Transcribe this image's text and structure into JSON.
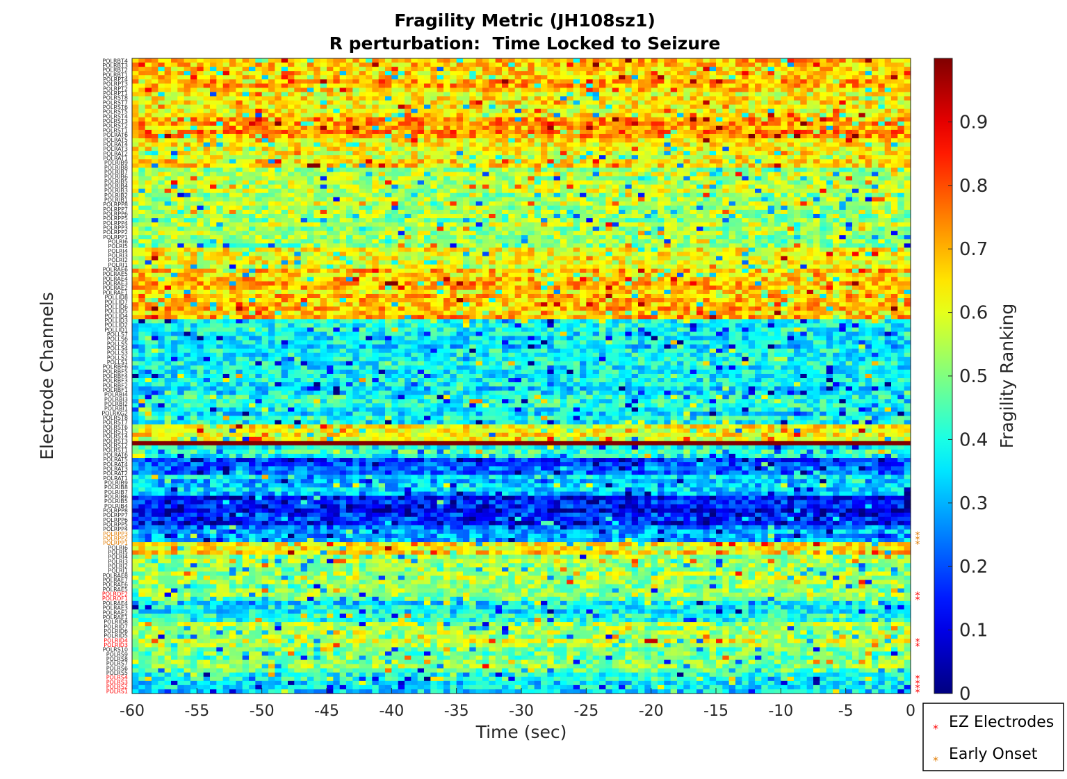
{
  "chart_data": {
    "type": "heatmap",
    "title": "Fragility Metric (JH108sz1)",
    "subtitle": "R perturbation:  Time Locked to Seizure",
    "xlabel": "Time (sec)",
    "ylabel": "Electrode Channels",
    "xlim": [
      -60,
      0
    ],
    "x_ticks": [
      "-60",
      "-55",
      "-50",
      "-45",
      "-40",
      "-35",
      "-30",
      "-25",
      "-20",
      "-15",
      "-10",
      "-5",
      "0"
    ],
    "colorbar": {
      "label": "Fragility Ranking",
      "range": [
        0,
        1
      ],
      "ticks": [
        "0",
        "0.1",
        "0.2",
        "0.3",
        "0.4",
        "0.5",
        "0.6",
        "0.7",
        "0.8",
        "0.9"
      ],
      "colormap": "jet"
    },
    "n_time_bins": 120,
    "channel_bands": [
      {
        "rows": 8,
        "mean": 0.68
      },
      {
        "rows": 6,
        "mean": 0.63
      },
      {
        "rows": 5,
        "mean": 0.72
      },
      {
        "rows": 7,
        "mean": 0.62
      },
      {
        "rows": 9,
        "mean": 0.55
      },
      {
        "rows": 10,
        "mean": 0.53
      },
      {
        "rows": 5,
        "mean": 0.59
      },
      {
        "rows": 6,
        "mean": 0.68
      },
      {
        "rows": 6,
        "mean": 0.7
      },
      {
        "rows": 6,
        "mean": 0.39
      },
      {
        "rows": 12,
        "mean": 0.35
      },
      {
        "rows": 7,
        "mean": 0.38
      },
      {
        "rows": 4,
        "mean": 0.62
      },
      {
        "rows": 1,
        "mean": 1.0
      },
      {
        "rows": 3,
        "mean": 0.42
      },
      {
        "rows": 4,
        "mean": 0.2
      },
      {
        "rows": 5,
        "mean": 0.34
      },
      {
        "rows": 7,
        "mean": 0.14
      },
      {
        "rows": 4,
        "mean": 0.28
      },
      {
        "rows": 3,
        "mean": 0.64
      },
      {
        "rows": 11,
        "mean": 0.52
      },
      {
        "rows": 5,
        "mean": 0.37
      },
      {
        "rows": 6,
        "mean": 0.55
      },
      {
        "rows": 6,
        "mean": 0.5
      },
      {
        "rows": 5,
        "mean": 0.36
      }
    ],
    "channels": [
      {
        "label": "POLRBT4",
        "color": "#262626"
      },
      {
        "label": "POLRBT3",
        "color": "#262626"
      },
      {
        "label": "POLRBT2",
        "color": "#262626"
      },
      {
        "label": "POLRBT1",
        "color": "#262626"
      },
      {
        "label": "POLRPT4",
        "color": "#262626"
      },
      {
        "label": "POLRPT3",
        "color": "#262626"
      },
      {
        "label": "POLRPT2",
        "color": "#262626"
      },
      {
        "label": "POLRPT1",
        "color": "#262626"
      },
      {
        "label": "POLRST8",
        "color": "#262626"
      },
      {
        "label": "POLRST7",
        "color": "#262626"
      },
      {
        "label": "POLRST6",
        "color": "#262626"
      },
      {
        "label": "POLRST5",
        "color": "#262626"
      },
      {
        "label": "POLRST4",
        "color": "#262626"
      },
      {
        "label": "POLRST3",
        "color": "#262626"
      },
      {
        "label": "POLRST2",
        "color": "#262626"
      },
      {
        "label": "POLRST1",
        "color": "#262626"
      },
      {
        "label": "POLRAT6",
        "color": "#262626"
      },
      {
        "label": "POLRAT5",
        "color": "#262626"
      },
      {
        "label": "POLRAT4",
        "color": "#262626"
      },
      {
        "label": "POLRAT3",
        "color": "#262626"
      },
      {
        "label": "POLRAT2",
        "color": "#262626"
      },
      {
        "label": "POLRAT1",
        "color": "#262626"
      },
      {
        "label": "POLRIB9",
        "color": "#262626"
      },
      {
        "label": "POLRIB8",
        "color": "#262626"
      },
      {
        "label": "POLRIB7",
        "color": "#262626"
      },
      {
        "label": "POLRIB6",
        "color": "#262626"
      },
      {
        "label": "POLRIB5",
        "color": "#262626"
      },
      {
        "label": "POLRIB4",
        "color": "#262626"
      },
      {
        "label": "POLRIB3",
        "color": "#262626"
      },
      {
        "label": "POLRIB2",
        "color": "#262626"
      },
      {
        "label": "POLRIB1",
        "color": "#262626"
      },
      {
        "label": "POLRPP8",
        "color": "#262626"
      },
      {
        "label": "POLRPP7",
        "color": "#262626"
      },
      {
        "label": "POLRPP6",
        "color": "#262626"
      },
      {
        "label": "POLRPP5",
        "color": "#262626"
      },
      {
        "label": "POLRPP4",
        "color": "#262626"
      },
      {
        "label": "POLRPP3",
        "color": "#262626"
      },
      {
        "label": "POLRPP2",
        "color": "#262626"
      },
      {
        "label": "POLRPP1",
        "color": "#262626"
      },
      {
        "label": "POLRI6",
        "color": "#262626"
      },
      {
        "label": "POLRI5",
        "color": "#262626"
      },
      {
        "label": "POLRI4",
        "color": "#262626"
      },
      {
        "label": "POLRI3",
        "color": "#262626"
      },
      {
        "label": "POLRI2",
        "color": "#262626"
      },
      {
        "label": "POLRI1",
        "color": "#262626"
      },
      {
        "label": "POLRAE6",
        "color": "#262626"
      },
      {
        "label": "POLRAE5",
        "color": "#262626"
      },
      {
        "label": "POLRAE4",
        "color": "#262626"
      },
      {
        "label": "POLRAE3",
        "color": "#262626"
      },
      {
        "label": "POLRAE2",
        "color": "#262626"
      },
      {
        "label": "POLRAE1",
        "color": "#262626"
      },
      {
        "label": "POLLID8",
        "color": "#262626"
      },
      {
        "label": "POLLID7",
        "color": "#262626"
      },
      {
        "label": "POLLID6",
        "color": "#262626"
      },
      {
        "label": "POLLID5",
        "color": "#262626"
      },
      {
        "label": "POLLID4",
        "color": "#262626"
      },
      {
        "label": "POLLID3",
        "color": "#262626"
      },
      {
        "label": "POLLID2",
        "color": "#262626"
      },
      {
        "label": "POLLID1",
        "color": "#262626"
      },
      {
        "label": "POLLS7",
        "color": "#262626"
      },
      {
        "label": "POLLS6",
        "color": "#262626"
      },
      {
        "label": "POLLS5",
        "color": "#262626"
      },
      {
        "label": "POLLS4",
        "color": "#262626"
      },
      {
        "label": "POLLS3",
        "color": "#262626"
      },
      {
        "label": "POLLS2",
        "color": "#262626"
      },
      {
        "label": "POLLS1",
        "color": "#262626"
      },
      {
        "label": "POLRBF6",
        "color": "#262626"
      },
      {
        "label": "POLRBF5",
        "color": "#262626"
      },
      {
        "label": "POLRBF4",
        "color": "#262626"
      },
      {
        "label": "POLRBF3",
        "color": "#262626"
      },
      {
        "label": "POLRBF2",
        "color": "#262626"
      },
      {
        "label": "POLRBF1",
        "color": "#262626"
      },
      {
        "label": "POLRBI4",
        "color": "#262626"
      },
      {
        "label": "POLRBI3",
        "color": "#262626"
      },
      {
        "label": "POLRBI2",
        "color": "#262626"
      },
      {
        "label": "POLRBI1",
        "color": "#262626"
      },
      {
        "label": "POLRKG2",
        "color": "#262626"
      },
      {
        "label": "POLRST8",
        "color": "#262626"
      },
      {
        "label": "POLRST7",
        "color": "#262626"
      },
      {
        "label": "POLRST6",
        "color": "#262626"
      },
      {
        "label": "POLRST5",
        "color": "#262626"
      },
      {
        "label": "POLRST4",
        "color": "#262626"
      },
      {
        "label": "POLRST3",
        "color": "#262626"
      },
      {
        "label": "POLRST2",
        "color": "#262626"
      },
      {
        "label": "POLRST1",
        "color": "#262626"
      },
      {
        "label": "POLRAT6",
        "color": "#262626"
      },
      {
        "label": "POLRAT5",
        "color": "#262626"
      },
      {
        "label": "POLRAT4",
        "color": "#262626"
      },
      {
        "label": "POLRAT3",
        "color": "#262626"
      },
      {
        "label": "POLRAT2",
        "color": "#262626"
      },
      {
        "label": "POLRAT1",
        "color": "#262626"
      },
      {
        "label": "POLRIB9",
        "color": "#262626"
      },
      {
        "label": "POLRIB8",
        "color": "#262626"
      },
      {
        "label": "POLRIB7",
        "color": "#262626"
      },
      {
        "label": "POLRIB6",
        "color": "#262626"
      },
      {
        "label": "POLRIB5",
        "color": "#262626"
      },
      {
        "label": "POLRIB4",
        "color": "#262626"
      },
      {
        "label": "POLRPP8",
        "color": "#262626"
      },
      {
        "label": "POLRPP7",
        "color": "#262626"
      },
      {
        "label": "POLRPP6",
        "color": "#262626"
      },
      {
        "label": "POLRPP5",
        "color": "#262626"
      },
      {
        "label": "POLRPP4",
        "color": "#262626"
      },
      {
        "label": "POLRPP3",
        "color": "#e07b00"
      },
      {
        "label": "POLRPP2",
        "color": "#e07b00"
      },
      {
        "label": "POLRPP1",
        "color": "#e07b00"
      },
      {
        "label": "POLRI6",
        "color": "#262626"
      },
      {
        "label": "POLRI5",
        "color": "#262626"
      },
      {
        "label": "POLRI4",
        "color": "#262626"
      },
      {
        "label": "POLRI3",
        "color": "#262626"
      },
      {
        "label": "POLRI2",
        "color": "#262626"
      },
      {
        "label": "POLRI1",
        "color": "#262626"
      },
      {
        "label": "POLRAE8",
        "color": "#262626"
      },
      {
        "label": "POLRAE7",
        "color": "#262626"
      },
      {
        "label": "POLRAE6",
        "color": "#262626"
      },
      {
        "label": "POLRAE5",
        "color": "#262626"
      },
      {
        "label": "POLROF2",
        "color": "#ff0000"
      },
      {
        "label": "POLROF1",
        "color": "#ff0000"
      },
      {
        "label": "POLRAE4",
        "color": "#262626"
      },
      {
        "label": "POLRAE3",
        "color": "#262626"
      },
      {
        "label": "POLRAE2",
        "color": "#262626"
      },
      {
        "label": "POLRAE1",
        "color": "#262626"
      },
      {
        "label": "POLRID8",
        "color": "#262626"
      },
      {
        "label": "POLRID7",
        "color": "#262626"
      },
      {
        "label": "POLRID6",
        "color": "#262626"
      },
      {
        "label": "POLRID5",
        "color": "#262626"
      },
      {
        "label": "POLRID4",
        "color": "#ff0000"
      },
      {
        "label": "POLRID3",
        "color": "#ff0000"
      },
      {
        "label": "POLRS10",
        "color": "#262626"
      },
      {
        "label": "POLRS9",
        "color": "#262626"
      },
      {
        "label": "POLRS8",
        "color": "#262626"
      },
      {
        "label": "POLRS7",
        "color": "#262626"
      },
      {
        "label": "POLRS6",
        "color": "#262626"
      },
      {
        "label": "POLRS5",
        "color": "#262626"
      },
      {
        "label": "POLRS4",
        "color": "#ff0000"
      },
      {
        "label": "POLRS3",
        "color": "#ff0000"
      },
      {
        "label": "POLRS2",
        "color": "#ff0000"
      },
      {
        "label": "POLRS1",
        "color": "#ff0000"
      }
    ],
    "markers": [
      {
        "channel": "POLRPP3",
        "type": "Early Onset",
        "color": "#e07b00"
      },
      {
        "channel": "POLRPP2",
        "type": "Early Onset",
        "color": "#e07b00"
      },
      {
        "channel": "POLRPP1",
        "type": "Early Onset",
        "color": "#e07b00"
      },
      {
        "channel": "POLROF2",
        "type": "EZ Electrodes",
        "color": "#ff0000"
      },
      {
        "channel": "POLROF1",
        "type": "EZ Electrodes",
        "color": "#ff0000"
      },
      {
        "channel": "POLRID4",
        "type": "EZ Electrodes",
        "color": "#ff0000"
      },
      {
        "channel": "POLRID3",
        "type": "EZ Electrodes",
        "color": "#ff0000"
      },
      {
        "channel": "POLRS4",
        "type": "EZ Electrodes",
        "color": "#ff0000"
      },
      {
        "channel": "POLRS3",
        "type": "EZ Electrodes",
        "color": "#ff0000"
      },
      {
        "channel": "POLRS2",
        "type": "EZ Electrodes",
        "color": "#ff0000"
      },
      {
        "channel": "POLRS1",
        "type": "EZ Electrodes",
        "color": "#ff0000"
      }
    ],
    "legend": {
      "placement": "bottom-right outside",
      "entries": [
        {
          "label": "EZ Electrodes",
          "color": "#ff0000",
          "symbol": "*"
        },
        {
          "label": "Early Onset",
          "color": "#e07b00",
          "symbol": "*"
        }
      ]
    }
  }
}
